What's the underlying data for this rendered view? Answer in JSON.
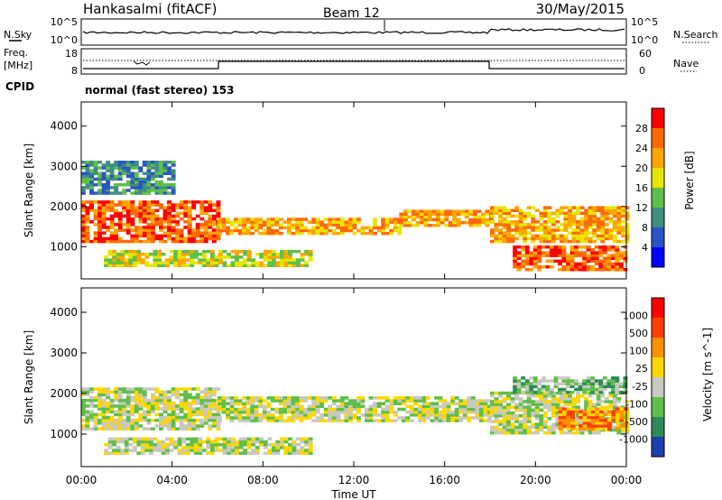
{
  "header": {
    "station": "Hankasalmi (fitACF)",
    "beam": "Beam 12",
    "date": "30/May/2015"
  },
  "top_panels": {
    "nsky_label": "N.Sky",
    "nsky_ticks": [
      "10^5",
      "10^0"
    ],
    "nsearch_label": "N.Search",
    "nsearch_ticks": [
      "10^5",
      "10^0"
    ],
    "freq_label_top": "Freq.",
    "freq_label_bottom": "[MHz]",
    "freq_ticks": [
      "18",
      "8"
    ],
    "nave_label": "Nave",
    "nave_ticks": [
      "60",
      "0"
    ],
    "cpid_label": "CPID",
    "cpid_text": "normal (fast stereo) 153"
  },
  "chart_data": [
    {
      "type": "heatmap",
      "name": "power",
      "ylabel": "Slant Range [km]",
      "ylim": [
        200,
        4600
      ],
      "y_ticks": [
        1000,
        2000,
        3000,
        4000
      ],
      "colorbar_label": "Power [dB]",
      "colorbar_ticks": [
        "28",
        "24",
        "20",
        "16",
        "12",
        "8",
        "4"
      ],
      "colors": [
        "#0000ff",
        "#2a55c4",
        "#3f8f80",
        "#5fbf4a",
        "#e6e600",
        "#ffa500",
        "#ff6a00",
        "#ff0000"
      ],
      "bands": [
        {
          "from_h": 0,
          "to_h": 6,
          "min_km": 1100,
          "max_km": 2100,
          "level": 6
        },
        {
          "from_h": 6,
          "to_h": 14,
          "min_km": 1300,
          "max_km": 1700,
          "level": 5
        },
        {
          "from_h": 14,
          "to_h": 18,
          "min_km": 1500,
          "max_km": 1900,
          "level": 5
        },
        {
          "from_h": 18,
          "to_h": 24,
          "min_km": 1100,
          "max_km": 2000,
          "level": 5
        },
        {
          "from_h": 1,
          "to_h": 10,
          "min_km": 500,
          "max_km": 900,
          "level": 4
        },
        {
          "from_h": 19,
          "to_h": 24,
          "min_km": 400,
          "max_km": 1000,
          "level": 6
        },
        {
          "from_h": 0,
          "to_h": 4,
          "min_km": 2300,
          "max_km": 3100,
          "level": 2
        }
      ]
    },
    {
      "type": "heatmap",
      "name": "velocity",
      "xlabel": "Time UT",
      "ylabel": "Slant Range [km]",
      "ylim": [
        200,
        4600
      ],
      "y_ticks": [
        1000,
        2000,
        3000,
        4000
      ],
      "x_ticks": [
        "00:00",
        "04:00",
        "08:00",
        "12:00",
        "16:00",
        "20:00",
        "00:00"
      ],
      "colorbar_label": "Velocity [m s^-1]",
      "colorbar_ticks": [
        "1000",
        "500",
        "100",
        "25",
        "-25",
        "-100",
        "-500",
        "-1000"
      ],
      "colors": [
        "#1f3fb0",
        "#2e8b57",
        "#5fbf4a",
        "#c8c8c0",
        "#ffd700",
        "#ff9000",
        "#ff4000",
        "#ff0000"
      ],
      "bands": [
        {
          "from_h": 0,
          "to_h": 6,
          "min_km": 1100,
          "max_km": 2100,
          "level": 3
        },
        {
          "from_h": 6,
          "to_h": 18,
          "min_km": 1300,
          "max_km": 1900,
          "level": 3
        },
        {
          "from_h": 18,
          "to_h": 24,
          "min_km": 1000,
          "max_km": 2000,
          "level": 3
        },
        {
          "from_h": 1,
          "to_h": 10,
          "min_km": 500,
          "max_km": 900,
          "level": 3
        },
        {
          "from_h": 21,
          "to_h": 24,
          "min_km": 1100,
          "max_km": 1600,
          "level": 5
        },
        {
          "from_h": 19,
          "to_h": 24,
          "min_km": 2000,
          "max_km": 2400,
          "level": 2
        }
      ]
    }
  ]
}
